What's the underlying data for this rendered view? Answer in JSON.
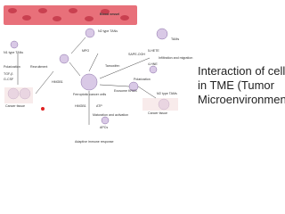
{
  "slide": {
    "title_lines": [
      "Interaction of cells",
      "in TME (Tumor",
      "Microenvironment"
    ]
  },
  "diagram": {
    "labels": [
      "Blood vessel",
      "N2 type TANs",
      "N1 type TANs",
      "Polarization",
      "Recruitment",
      "TGF-β",
      "G-CSF",
      "Cancer tissue",
      "MPO",
      "Tamoxifen",
      "HMGB1",
      "Ferroptotic cancer cells",
      "Exosome KRAS",
      "Polarization",
      "M2 type TAMs",
      "Cancer tissue",
      "TAMs",
      "SAPE-OOH",
      "5-HETE",
      "4-HNE",
      "Infiltration and migration",
      "HMGB1",
      "ATP",
      "Maturation and activation",
      "APCs",
      "Adaptive immune response"
    ]
  }
}
